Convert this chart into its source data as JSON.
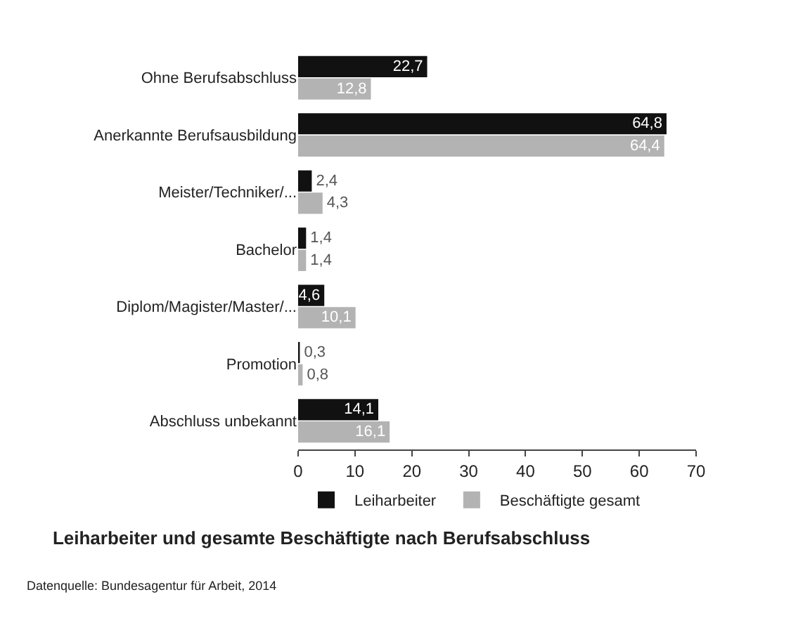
{
  "chart_data": {
    "type": "bar",
    "orientation": "horizontal",
    "title": "Leiharbeiter und gesamte Beschäftigte nach Berufsabschluss",
    "categories": [
      "Ohne Berufsabschluss",
      "Anerkannte Berufsausbildung",
      "Meister/Techniker/...",
      "Bachelor",
      "Diplom/Magister/Master/...",
      "Promotion",
      "Abschluss unbekannt"
    ],
    "series": [
      {
        "name": "Leiharbeiter",
        "color": "#111111",
        "values": [
          22.7,
          64.8,
          2.4,
          1.4,
          4.6,
          0.3,
          14.1
        ],
        "value_labels": [
          "22,7",
          "64,8",
          "2,4",
          "1,4",
          "4,6",
          "0,3",
          "14,1"
        ]
      },
      {
        "name": "Beschäftigte gesamt",
        "color": "#b3b3b3",
        "values": [
          12.8,
          64.4,
          4.3,
          1.4,
          10.1,
          0.8,
          16.1
        ],
        "value_labels": [
          "12,8",
          "64,4",
          "4,3",
          "1,4",
          "10,1",
          "0,8",
          "16,1"
        ]
      }
    ],
    "xlim": [
      0,
      70
    ],
    "xticks": [
      0,
      10,
      20,
      30,
      40,
      50,
      60,
      70
    ],
    "grid": false,
    "legend": "bottom",
    "annotations": [
      "Datenquelle: Bundesagentur für Arbeit, 2014"
    ]
  }
}
